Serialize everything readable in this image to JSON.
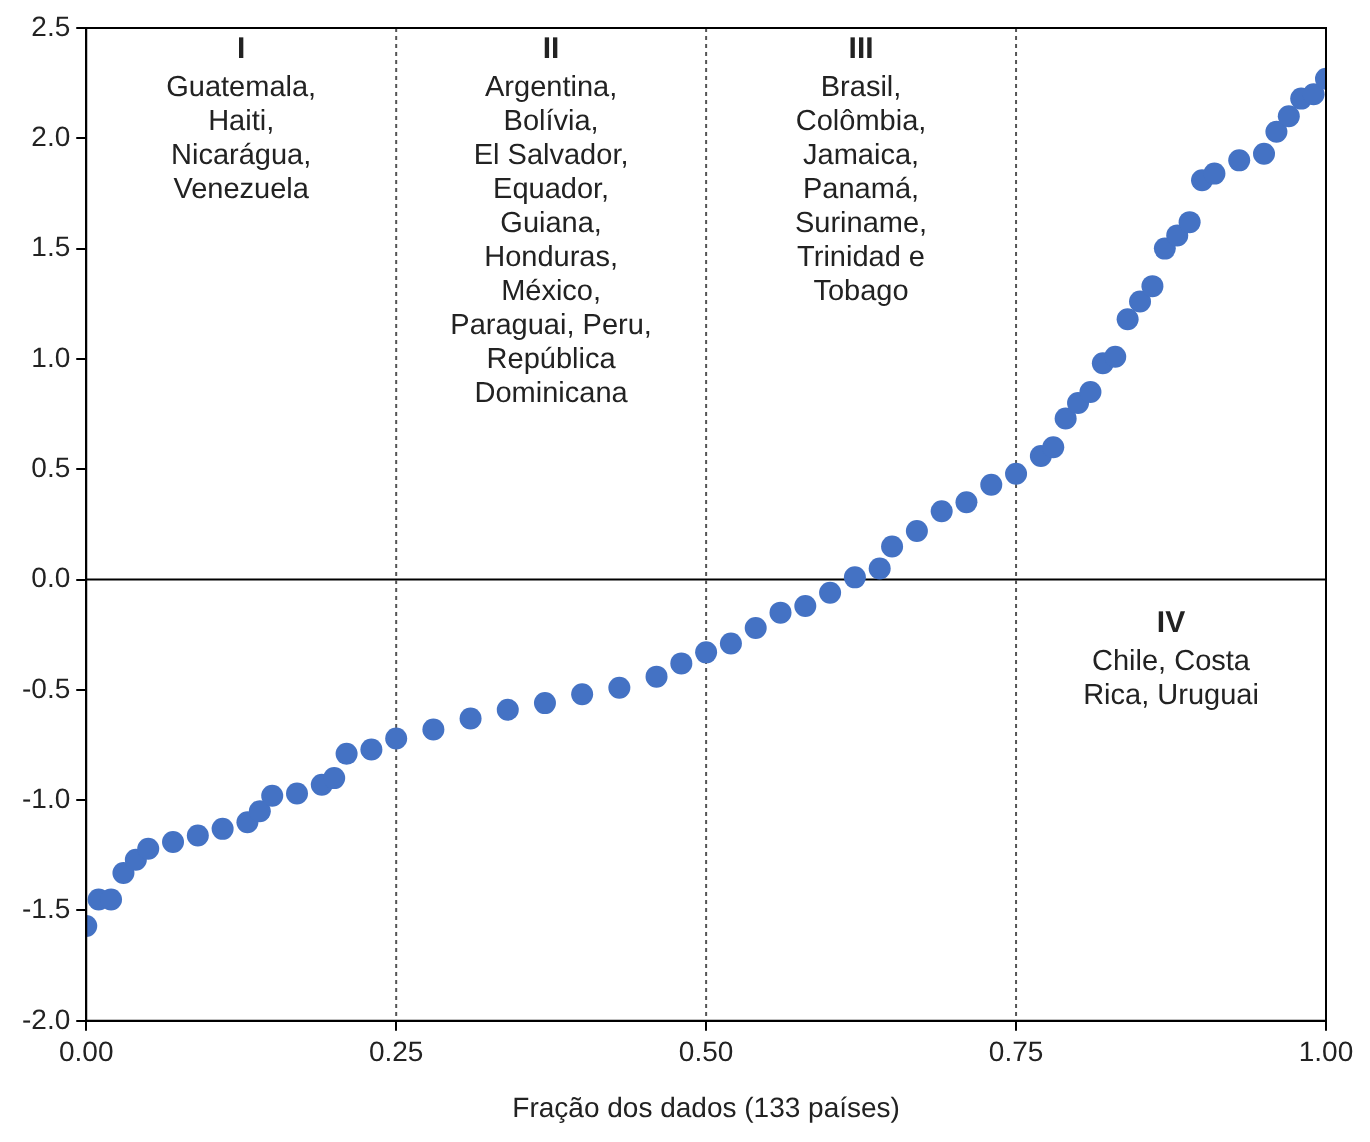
{
  "chart_data": {
    "type": "scatter",
    "xlabel": "Fração dos dados (133 países)",
    "x": [
      0,
      0.01,
      0.02,
      0.03,
      0.04,
      0.05,
      0.07,
      0.09,
      0.11,
      0.13,
      0.14,
      0.15,
      0.17,
      0.19,
      0.2,
      0.21,
      0.23,
      0.25,
      0.28,
      0.31,
      0.34,
      0.37,
      0.4,
      0.43,
      0.46,
      0.48,
      0.5,
      0.52,
      0.54,
      0.56,
      0.58,
      0.6,
      0.62,
      0.64,
      0.65,
      0.67,
      0.69,
      0.71,
      0.73,
      0.75,
      0.77,
      0.78,
      0.79,
      0.8,
      0.81,
      0.82,
      0.83,
      0.84,
      0.85,
      0.86,
      0.87,
      0.88,
      0.89,
      0.9,
      0.91,
      0.93,
      0.95,
      0.96,
      0.97,
      0.98,
      0.99,
      1
    ],
    "series": [
      {
        "color": "#4472c4",
        "values": [
          -1.57,
          -1.45,
          -1.45,
          -1.33,
          -1.27,
          -1.22,
          -1.19,
          -1.16,
          -1.13,
          -1.1,
          -1.05,
          -0.98,
          -0.97,
          -0.93,
          -0.9,
          -0.79,
          -0.77,
          -0.72,
          -0.68,
          -0.63,
          -0.59,
          -0.56,
          -0.52,
          -0.49,
          -0.44,
          -0.38,
          -0.33,
          -0.29,
          -0.22,
          -0.15,
          -0.12,
          -0.06,
          0.01,
          0.05,
          0.15,
          0.22,
          0.31,
          0.35,
          0.43,
          0.48,
          0.56,
          0.6,
          0.73,
          0.8,
          0.85,
          0.98,
          1.01,
          1.18,
          1.26,
          1.33,
          1.5,
          1.56,
          1.62,
          1.81,
          1.84,
          1.9,
          1.93,
          2.03,
          2.1,
          2.18,
          2.2,
          2.27
        ]
      }
    ],
    "marker": "circle",
    "grid": false,
    "legend": false,
    "xlim": [
      0,
      1
    ],
    "xticks": [
      {
        "value": 0,
        "label": "0.00"
      },
      {
        "value": 0.25,
        "label": "0.25"
      },
      {
        "value": 0.5,
        "label": "0.50"
      },
      {
        "value": 0.75,
        "label": "0.75"
      },
      {
        "value": 1,
        "label": "1.00"
      }
    ],
    "ylim": [
      -2,
      2.5
    ],
    "yticks": [
      {
        "value": -2,
        "label": "-2.0"
      },
      {
        "value": -1.5,
        "label": "-1.5"
      },
      {
        "value": -1,
        "label": "-1.0"
      },
      {
        "value": -0.5,
        "label": "-0.5"
      },
      {
        "value": 0,
        "label": "0.0"
      },
      {
        "value": 0.5,
        "label": "0.5"
      },
      {
        "value": 1,
        "label": "1.0"
      },
      {
        "value": 1.5,
        "label": "1.5"
      },
      {
        "value": 2,
        "label": "2.0"
      },
      {
        "value": 2.5,
        "label": "2.5"
      }
    ],
    "ref_lines": [
      {
        "axis": "y",
        "value": 0,
        "color": "#000000",
        "line_style": "solid"
      },
      {
        "axis": "x",
        "value": 0.25,
        "color": "#555555",
        "line_style": "dotted"
      },
      {
        "axis": "x",
        "value": 0.5,
        "color": "#555555",
        "line_style": "dotted"
      },
      {
        "axis": "x",
        "value": 0.75,
        "color": "#555555",
        "line_style": "dotted"
      }
    ],
    "annotations": [
      "I",
      "Guatemala,\nHaiti,\nNicarágua,\nVenezuela",
      "II",
      "Argentina,\nBolívia,\nEl Salvador,\nEquador,\nGuiana,\nHonduras,\nMéxico,\nParaguai, Peru,\nRepública\nDominicana",
      "III",
      "Brasil,\nColômbia,\nJamaica,\nPanamá,\nSuriname,\nTrinidad e\nTobago",
      "IV",
      "Chile, Costa\nRica, Uruguai"
    ]
  }
}
